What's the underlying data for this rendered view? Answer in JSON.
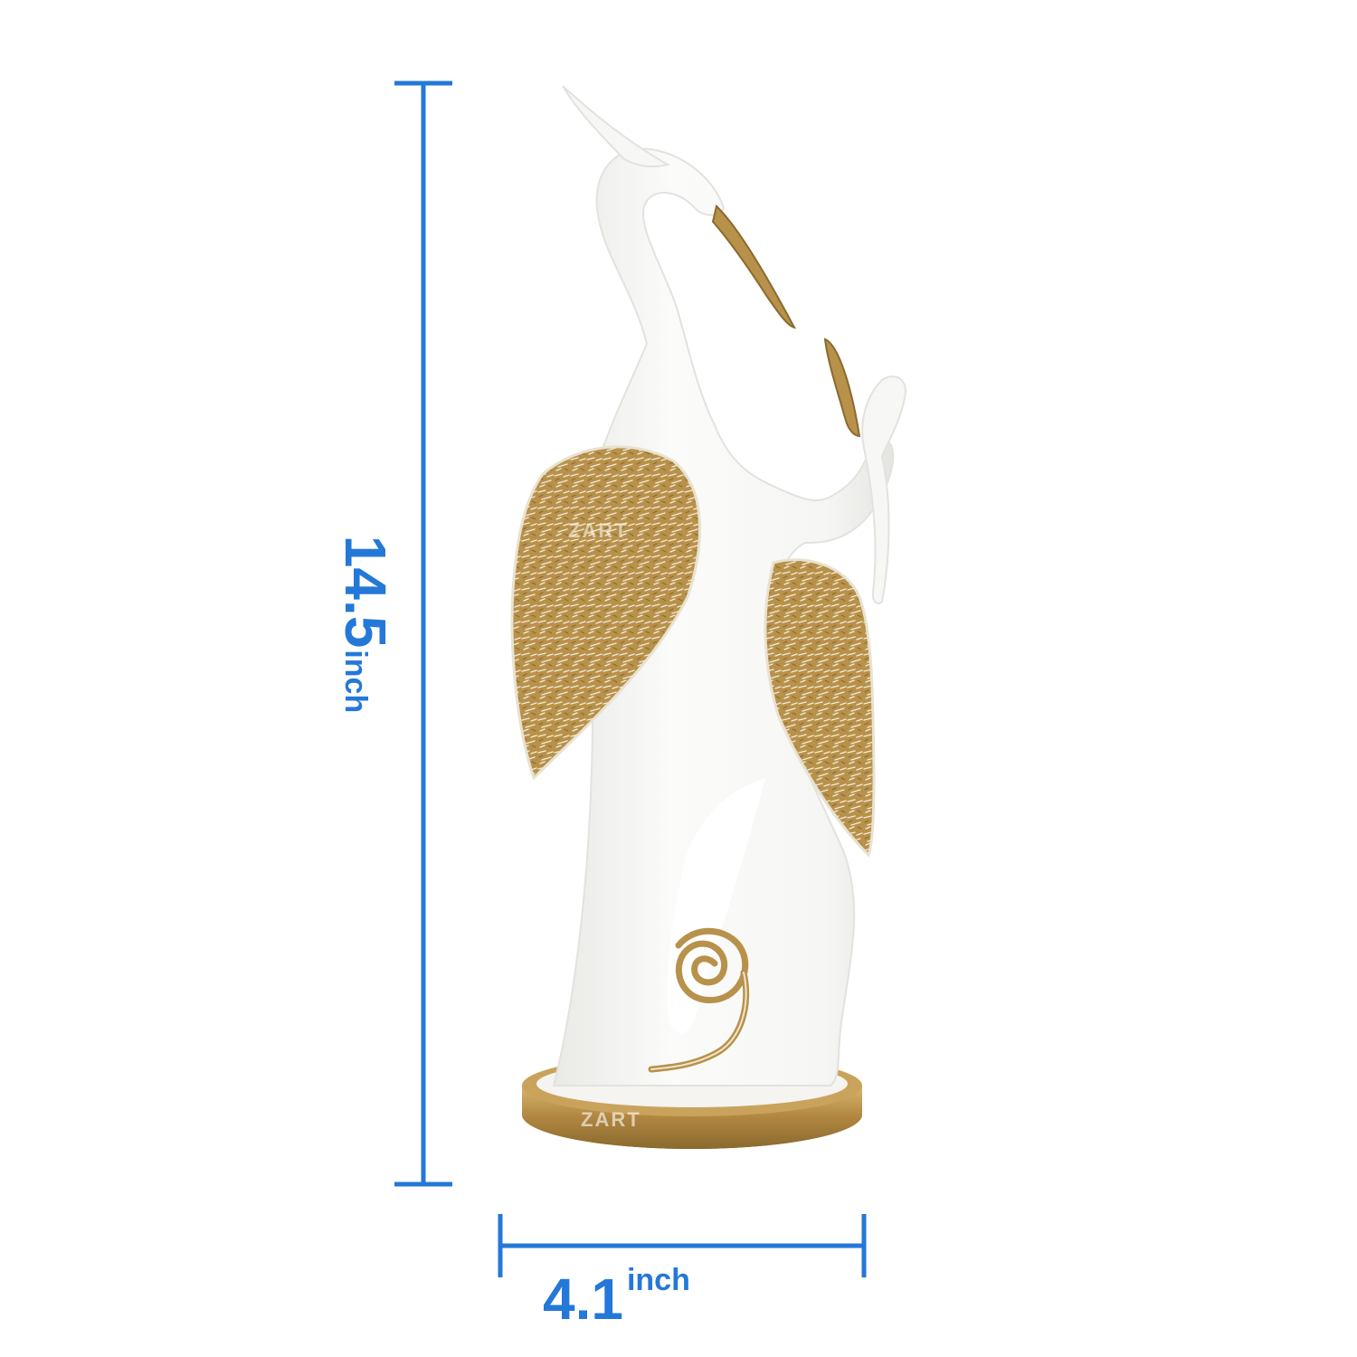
{
  "colors": {
    "dimension_blue": "#2478d8",
    "statue_white": "#f7f7f5",
    "gold": "#b8914a",
    "gold_dark": "#8a6a2e",
    "background": "#ffffff"
  },
  "dimensions": {
    "height": {
      "value": "14.5",
      "unit": "inch"
    },
    "width": {
      "value": "4.1",
      "unit": "inch"
    }
  },
  "watermark": {
    "text": "ZART"
  }
}
